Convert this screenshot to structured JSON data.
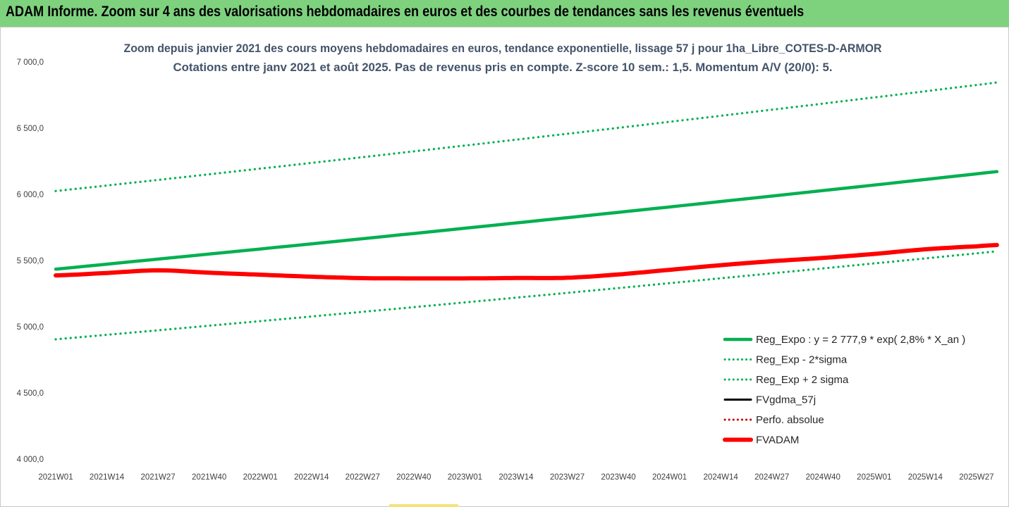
{
  "banner": {
    "title": "ADAM Informe. Zoom sur 4 ans des valorisations hebdomadaires en euros et des courbes de tendances sans les revenus éventuels"
  },
  "colors": {
    "banner_bg": "#7ed27e",
    "trend_green": "#00b050",
    "adam_red": "#ff0000",
    "black": "#000000"
  },
  "chart_data": {
    "type": "line",
    "title": "Zoom depuis janvier 2021 des cours moyens hebdomadaires en euros, tendance exponentielle, lissage 57 j pour 1ha_Libre_COTES-D-ARMOR",
    "subtitle": "Cotations entre janv 2021 et août 2025.  Pas de revenus pris en compte. Z-score 10 sem.: 1,5. Momentum A/V (20/0): 5.",
    "ylim": [
      4000,
      7000
    ],
    "yticks": [
      "4 000,0",
      "4 500,0",
      "5 000,0",
      "5 500,0",
      "6 000,0",
      "6 500,0",
      "7 000,0"
    ],
    "ytick_values": [
      4000,
      4500,
      5000,
      5500,
      6000,
      6500,
      7000
    ],
    "x_categories": [
      "2021W01",
      "2021W14",
      "2021W27",
      "2021W40",
      "2022W01",
      "2022W14",
      "2022W27",
      "2022W40",
      "2023W01",
      "2023W14",
      "2023W27",
      "2023W40",
      "2024W01",
      "2024W14",
      "2024W27",
      "2024W40",
      "2025W01",
      "2025W14",
      "2025W27"
    ],
    "x_end": 18.4,
    "grid": false,
    "legend_position": "bottom-right",
    "series": [
      {
        "name": "Reg_Expo : y = 2 777,9 * exp( 2,8% *  X_an )",
        "style": "solid-thick",
        "color": "#00b050",
        "x": [
          0,
          18.4
        ],
        "values": [
          5435,
          6172
        ],
        "shape": "exponential"
      },
      {
        "name": "Reg_Exp - 2*sigma",
        "style": "dotted",
        "color": "#00b050",
        "x": [
          0,
          18.4
        ],
        "values": [
          4905,
          5570
        ],
        "shape": "exponential"
      },
      {
        "name": "Reg_Exp + 2 sigma",
        "style": "dotted",
        "color": "#00b050",
        "x": [
          0,
          18.4
        ],
        "values": [
          6025,
          6845
        ],
        "shape": "exponential"
      },
      {
        "name": "FVgdma_57j",
        "style": "solid",
        "color": "#000000",
        "x": [
          0,
          1,
          2,
          3,
          4,
          5,
          6,
          7,
          8,
          9,
          10,
          11,
          12,
          13,
          14,
          15,
          16,
          17,
          18,
          18.4
        ],
        "values": [
          5388,
          5408,
          5422,
          5408,
          5393,
          5378,
          5367,
          5365,
          5365,
          5368,
          5370,
          5395,
          5430,
          5465,
          5495,
          5520,
          5550,
          5585,
          5605,
          5615
        ]
      },
      {
        "name": "Perfo. absolue",
        "style": "dotted",
        "color": "#c00000",
        "x": [],
        "values": []
      },
      {
        "name": "FVADAM",
        "style": "solid-thick",
        "color": "#ff0000",
        "x": [
          0,
          1,
          2,
          3,
          4,
          5,
          6,
          7,
          8,
          9,
          10,
          11,
          12,
          13,
          14,
          15,
          16,
          17,
          18,
          18.4
        ],
        "values": [
          5388,
          5406,
          5426,
          5408,
          5393,
          5378,
          5367,
          5365,
          5365,
          5368,
          5370,
          5395,
          5430,
          5465,
          5495,
          5520,
          5550,
          5585,
          5607,
          5617
        ]
      }
    ]
  }
}
